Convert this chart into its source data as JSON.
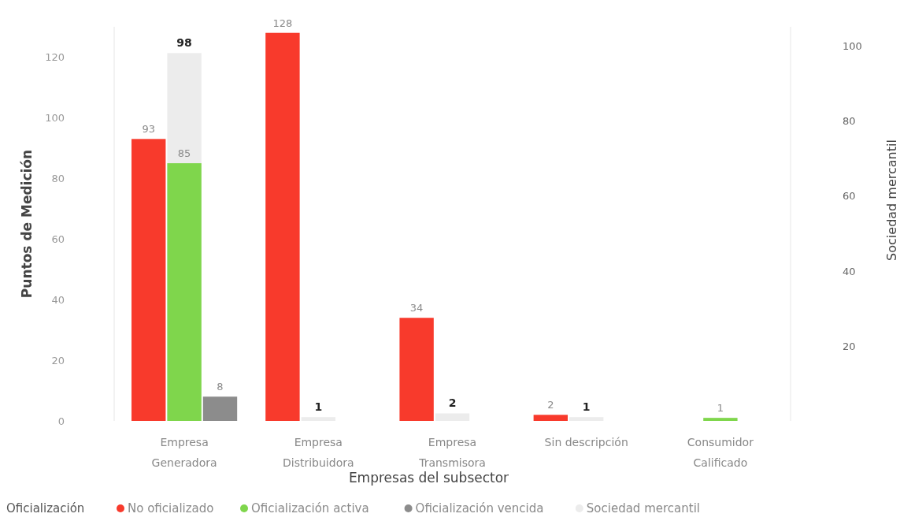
{
  "chart_data": {
    "type": "bar",
    "xlabel": "Empresas del subsector",
    "ylabel": "Puntos de Medición",
    "y2label": "Sociedad mercantil",
    "legend_title": "Oficialización",
    "categories": [
      "Empresa Generadora",
      "Empresa Distribuidora",
      "Empresa Transmisora",
      "Sin descripción",
      "Consumidor Calificado"
    ],
    "series": [
      {
        "name": "No oficializado",
        "color": "#f83a2c",
        "values": [
          93,
          128,
          34,
          2,
          null
        ]
      },
      {
        "name": "Oficialización activa",
        "color": "#7fd64c",
        "values": [
          85,
          null,
          null,
          null,
          1
        ]
      },
      {
        "name": "Oficialización vencida",
        "color": "#8c8c8c",
        "values": [
          8,
          null,
          null,
          null,
          null
        ]
      },
      {
        "name": "Sociedad mercantil",
        "color": "#ececec",
        "axis": "y2",
        "values": [
          98,
          1,
          2,
          1,
          null
        ]
      }
    ],
    "ylim": [
      0,
      130
    ],
    "yticks": [
      0,
      20,
      40,
      60,
      80,
      100,
      120
    ],
    "y2lim": [
      0,
      105
    ],
    "y2ticks": [
      20,
      40,
      60,
      80,
      100
    ],
    "data_labels": true,
    "legend": "bottom left",
    "grid": false
  }
}
